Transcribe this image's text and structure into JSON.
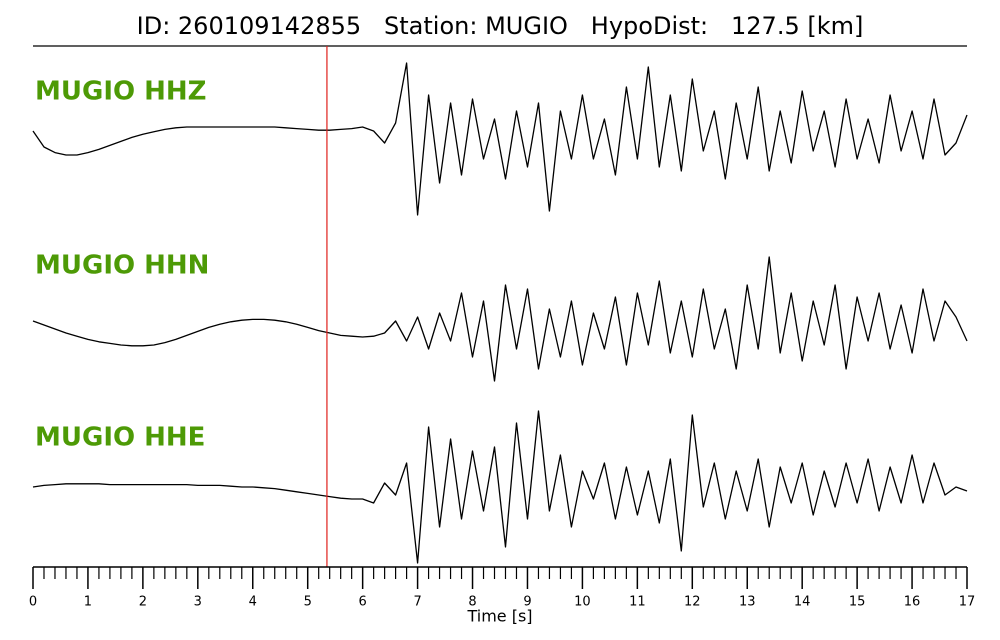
{
  "chart_data": {
    "type": "seismogram",
    "title": "ID: 260109142855   Station: MUGIO   HypoDist:   127.5 [km]",
    "x_label": "Time [s]",
    "label_color": "#4d9a06",
    "x": [
      0,
      0.2,
      0.4,
      0.6,
      0.8,
      1.0,
      1.2,
      1.4,
      1.6,
      1.8,
      2.0,
      2.2,
      2.4,
      2.6,
      2.8,
      3.0,
      3.2,
      3.4,
      3.6,
      3.8,
      4.0,
      4.2,
      4.4,
      4.6,
      4.8,
      5.0,
      5.2,
      5.4,
      5.6,
      5.8,
      6.0,
      6.2,
      6.4,
      6.6,
      6.8,
      7.0,
      7.2,
      7.4,
      7.6,
      7.8,
      8.0,
      8.2,
      8.4,
      8.6,
      8.8,
      9.0,
      9.2,
      9.4,
      9.6,
      9.8,
      10.0,
      10.2,
      10.4,
      10.6,
      10.8,
      11.0,
      11.2,
      11.4,
      11.6,
      11.8,
      12.0,
      12.2,
      12.4,
      12.6,
      12.8,
      13.0,
      13.2,
      13.4,
      13.6,
      13.8,
      14.0,
      14.2,
      14.4,
      14.6,
      14.8,
      15.0,
      15.2,
      15.4,
      15.6,
      15.8,
      16.0,
      16.2,
      16.4,
      16.6,
      16.8,
      17.0
    ],
    "series": [
      {
        "name": "MUGIO HHZ",
        "color": "#000000",
        "values": [
          0.05,
          -0.15,
          -0.22,
          -0.25,
          -0.25,
          -0.22,
          -0.18,
          -0.13,
          -0.08,
          -0.03,
          0.01,
          0.04,
          0.07,
          0.09,
          0.1,
          0.1,
          0.1,
          0.1,
          0.1,
          0.1,
          0.1,
          0.1,
          0.1,
          0.09,
          0.08,
          0.07,
          0.06,
          0.06,
          0.07,
          0.08,
          0.1,
          0.05,
          -0.1,
          0.15,
          0.9,
          -1.0,
          0.5,
          -0.6,
          0.4,
          -0.5,
          0.45,
          -0.3,
          0.2,
          -0.55,
          0.3,
          -0.4,
          0.4,
          -0.95,
          0.3,
          -0.3,
          0.5,
          -0.3,
          0.2,
          -0.5,
          0.6,
          -0.3,
          0.85,
          -0.4,
          0.5,
          -0.45,
          0.7,
          -0.2,
          0.3,
          -0.55,
          0.4,
          -0.3,
          0.6,
          -0.45,
          0.3,
          -0.35,
          0.55,
          -0.2,
          0.3,
          -0.4,
          0.45,
          -0.3,
          0.2,
          -0.35,
          0.5,
          -0.2,
          0.3,
          -0.3,
          0.45,
          -0.25,
          -0.1,
          0.25
        ]
      },
      {
        "name": "MUGIO HHN",
        "color": "#000000",
        "values": [
          0.05,
          0.0,
          -0.05,
          -0.1,
          -0.14,
          -0.18,
          -0.21,
          -0.23,
          -0.25,
          -0.26,
          -0.26,
          -0.25,
          -0.22,
          -0.18,
          -0.13,
          -0.08,
          -0.03,
          0.01,
          0.04,
          0.06,
          0.07,
          0.07,
          0.06,
          0.04,
          0.01,
          -0.03,
          -0.07,
          -0.1,
          -0.13,
          -0.14,
          -0.15,
          -0.14,
          -0.1,
          0.05,
          -0.2,
          0.1,
          -0.3,
          0.15,
          -0.2,
          0.4,
          -0.4,
          0.3,
          -0.7,
          0.5,
          -0.3,
          0.45,
          -0.55,
          0.2,
          -0.4,
          0.3,
          -0.5,
          0.15,
          -0.3,
          0.35,
          -0.5,
          0.4,
          -0.25,
          0.55,
          -0.35,
          0.3,
          -0.4,
          0.45,
          -0.3,
          0.2,
          -0.55,
          0.5,
          -0.3,
          0.85,
          -0.35,
          0.4,
          -0.45,
          0.3,
          -0.25,
          0.5,
          -0.55,
          0.35,
          -0.2,
          0.4,
          -0.3,
          0.25,
          -0.35,
          0.45,
          -0.2,
          0.3,
          0.1,
          -0.2
        ]
      },
      {
        "name": "MUGIO HHE",
        "color": "#000000",
        "values": [
          0.0,
          0.02,
          0.03,
          0.04,
          0.04,
          0.04,
          0.04,
          0.03,
          0.03,
          0.03,
          0.03,
          0.03,
          0.03,
          0.03,
          0.03,
          0.02,
          0.02,
          0.02,
          0.01,
          0.0,
          0.0,
          -0.01,
          -0.02,
          -0.04,
          -0.06,
          -0.08,
          -0.1,
          -0.12,
          -0.14,
          -0.15,
          -0.15,
          -0.2,
          0.05,
          -0.1,
          0.3,
          -0.95,
          0.75,
          -0.5,
          0.6,
          -0.4,
          0.45,
          -0.3,
          0.5,
          -0.75,
          0.8,
          -0.4,
          0.95,
          -0.3,
          0.4,
          -0.5,
          0.2,
          -0.15,
          0.3,
          -0.4,
          0.25,
          -0.35,
          0.2,
          -0.45,
          0.35,
          -0.8,
          0.9,
          -0.25,
          0.3,
          -0.4,
          0.2,
          -0.3,
          0.35,
          -0.5,
          0.25,
          -0.2,
          0.3,
          -0.35,
          0.2,
          -0.25,
          0.3,
          -0.2,
          0.35,
          -0.3,
          0.25,
          -0.2,
          0.4,
          -0.2,
          0.3,
          -0.1,
          0.0,
          -0.05
        ]
      }
    ],
    "ylim": [
      -1,
      1
    ],
    "xlim": [
      0,
      17
    ],
    "xticks": [
      0,
      1,
      2,
      3,
      4,
      5,
      6,
      7,
      8,
      9,
      10,
      11,
      12,
      13,
      14,
      15,
      16,
      17
    ],
    "vlines": [
      {
        "x": 5.35,
        "color": "#e0201b"
      }
    ]
  }
}
